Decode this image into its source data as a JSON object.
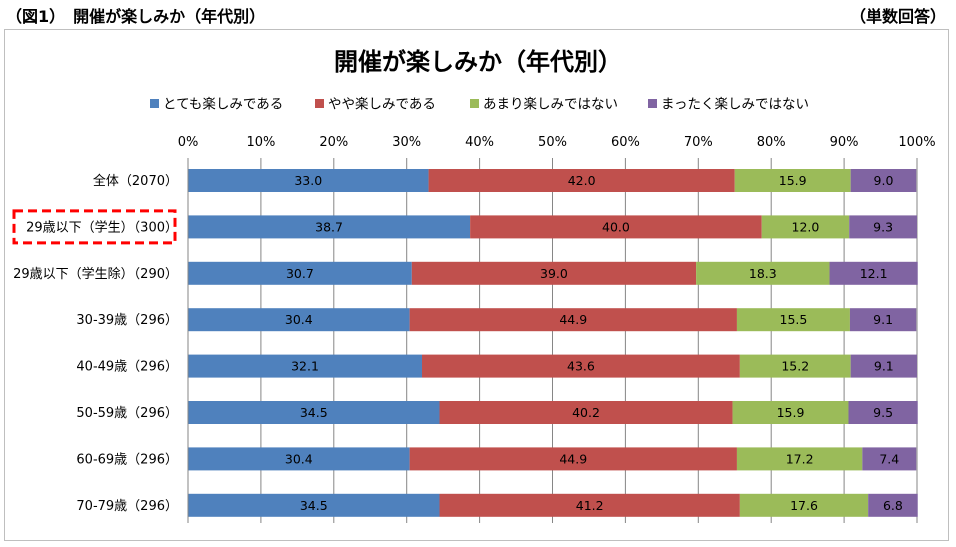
{
  "header": {
    "figure_label": "（図1）　開催が楽しみか（年代別）",
    "unit_label": "（単数回答）"
  },
  "chart_data": {
    "type": "bar",
    "orientation": "horizontal-stacked-percent",
    "title": "開催が楽しみか（年代別）",
    "x_ticks": [
      "0%",
      "10%",
      "20%",
      "30%",
      "40%",
      "50%",
      "60%",
      "70%",
      "80%",
      "90%",
      "100%"
    ],
    "xlim": [
      0,
      100
    ],
    "legend_position": "top",
    "grid": "vertical",
    "categories": [
      "全体（2070）",
      "29歳以下（学生）（300）",
      "29歳以下（学生除）（290）",
      "30-39歳（296）",
      "40-49歳（296）",
      "50-59歳（296）",
      "60-69歳（296）",
      "70-79歳（296）"
    ],
    "highlighted_category_index": 1,
    "highlight_color": "#ff0000",
    "series": [
      {
        "name": "とても楽しみである",
        "color": "#4f81bd",
        "values": [
          "33.0",
          "38.7",
          "30.7",
          "30.4",
          "32.1",
          "34.5",
          "30.4",
          "34.5"
        ]
      },
      {
        "name": "やや楽しみである",
        "color": "#c0504d",
        "values": [
          "42.0",
          "40.0",
          "39.0",
          "44.9",
          "43.6",
          "40.2",
          "44.9",
          "41.2"
        ]
      },
      {
        "name": "あまり楽しみではない",
        "color": "#9bbb59",
        "values": [
          "15.9",
          "12.0",
          "18.3",
          "15.5",
          "15.2",
          "15.9",
          "17.2",
          "17.6"
        ]
      },
      {
        "name": "まったく楽しみではない",
        "color": "#8064a2",
        "values": [
          "9.0",
          "9.3",
          "12.1",
          "9.1",
          "9.1",
          "9.5",
          "7.4",
          "6.8"
        ]
      }
    ]
  }
}
